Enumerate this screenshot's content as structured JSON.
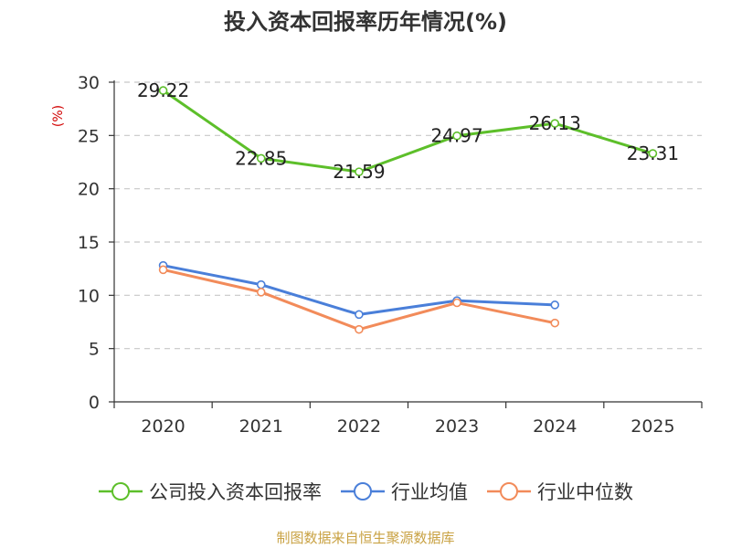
{
  "chart_data": {
    "type": "line",
    "title": "投入资本回报率历年情况(%)",
    "ylabel": "(%)",
    "xlabel": "",
    "categories": [
      "2020",
      "2021",
      "2022",
      "2023",
      "2024",
      "2025"
    ],
    "ylim": [
      0,
      30
    ],
    "yticks": [
      0,
      5,
      10,
      15,
      20,
      25,
      30
    ],
    "grid": true,
    "legend_position": "bottom",
    "series": [
      {
        "name": "公司投入资本回报率",
        "values": [
          29.22,
          22.85,
          21.59,
          24.97,
          26.13,
          23.31
        ],
        "labels": [
          "29.22",
          "22.85",
          "21.59",
          "24.97",
          "26.13",
          "23.31"
        ],
        "color": "#5dbf2a"
      },
      {
        "name": "行业均值",
        "values": [
          12.8,
          11.0,
          8.2,
          9.5,
          9.1,
          null
        ],
        "color": "#4a7fd9"
      },
      {
        "name": "行业中位数",
        "values": [
          12.4,
          10.3,
          6.8,
          9.3,
          7.4,
          null
        ],
        "color": "#f28b5a"
      }
    ]
  },
  "source": "制图数据来自恒生聚源数据库",
  "colors": {
    "axis": "#333333",
    "grid": "#c8c8c8",
    "ylabel": "#d10000"
  }
}
